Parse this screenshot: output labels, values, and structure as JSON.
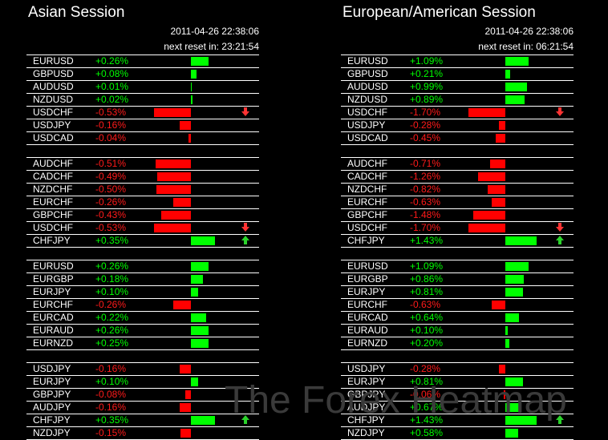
{
  "watermark": "The Forex Heatmap",
  "colors": {
    "positive": "#00ff00",
    "negative": "#ff0000",
    "background": "#000000"
  },
  "panels": [
    {
      "title": "Asian Session",
      "timestamp": "2011-04-26 22:38:06",
      "reset": "next reset in: 23:21:54",
      "groups": [
        [
          {
            "symbol": "EURUSD",
            "change": "+0.26%",
            "value": 0.26,
            "arrow": ""
          },
          {
            "symbol": "GBPUSD",
            "change": "+0.08%",
            "value": 0.08,
            "arrow": ""
          },
          {
            "symbol": "AUDUSD",
            "change": "+0.01%",
            "value": 0.01,
            "arrow": ""
          },
          {
            "symbol": "NZDUSD",
            "change": "+0.02%",
            "value": 0.02,
            "arrow": ""
          },
          {
            "symbol": "USDCHF",
            "change": "-0.53%",
            "value": -0.53,
            "arrow": "down"
          },
          {
            "symbol": "USDJPY",
            "change": "-0.16%",
            "value": -0.16,
            "arrow": ""
          },
          {
            "symbol": "USDCAD",
            "change": "-0.04%",
            "value": -0.04,
            "arrow": ""
          }
        ],
        [
          {
            "symbol": "AUDCHF",
            "change": "-0.51%",
            "value": -0.51,
            "arrow": ""
          },
          {
            "symbol": "CADCHF",
            "change": "-0.49%",
            "value": -0.49,
            "arrow": ""
          },
          {
            "symbol": "NZDCHF",
            "change": "-0.50%",
            "value": -0.5,
            "arrow": ""
          },
          {
            "symbol": "EURCHF",
            "change": "-0.26%",
            "value": -0.26,
            "arrow": ""
          },
          {
            "symbol": "GBPCHF",
            "change": "-0.43%",
            "value": -0.43,
            "arrow": ""
          },
          {
            "symbol": "USDCHF",
            "change": "-0.53%",
            "value": -0.53,
            "arrow": "down"
          },
          {
            "symbol": "CHFJPY",
            "change": "+0.35%",
            "value": 0.35,
            "arrow": "up"
          }
        ],
        [
          {
            "symbol": "EURUSD",
            "change": "+0.26%",
            "value": 0.26,
            "arrow": ""
          },
          {
            "symbol": "EURGBP",
            "change": "+0.18%",
            "value": 0.18,
            "arrow": ""
          },
          {
            "symbol": "EURJPY",
            "change": "+0.10%",
            "value": 0.1,
            "arrow": ""
          },
          {
            "symbol": "EURCHF",
            "change": "-0.26%",
            "value": -0.26,
            "arrow": ""
          },
          {
            "symbol": "EURCAD",
            "change": "+0.22%",
            "value": 0.22,
            "arrow": ""
          },
          {
            "symbol": "EURAUD",
            "change": "+0.26%",
            "value": 0.26,
            "arrow": ""
          },
          {
            "symbol": "EURNZD",
            "change": "+0.25%",
            "value": 0.25,
            "arrow": ""
          }
        ],
        [
          {
            "symbol": "USDJPY",
            "change": "-0.16%",
            "value": -0.16,
            "arrow": ""
          },
          {
            "symbol": "EURJPY",
            "change": "+0.10%",
            "value": 0.1,
            "arrow": ""
          },
          {
            "symbol": "GBPJPY",
            "change": "-0.08%",
            "value": -0.08,
            "arrow": ""
          },
          {
            "symbol": "AUDJPY",
            "change": "-0.16%",
            "value": -0.16,
            "arrow": ""
          },
          {
            "symbol": "CHFJPY",
            "change": "+0.35%",
            "value": 0.35,
            "arrow": "up"
          },
          {
            "symbol": "NZDJPY",
            "change": "-0.15%",
            "value": -0.15,
            "arrow": ""
          }
        ]
      ]
    },
    {
      "title": "European/American Session",
      "timestamp": "2011-04-26 22:38:06",
      "reset": "next reset in: 06:21:54",
      "groups": [
        [
          {
            "symbol": "EURUSD",
            "change": "+1.09%",
            "value": 1.09,
            "arrow": ""
          },
          {
            "symbol": "GBPUSD",
            "change": "+0.21%",
            "value": 0.21,
            "arrow": ""
          },
          {
            "symbol": "AUDUSD",
            "change": "+0.99%",
            "value": 0.99,
            "arrow": ""
          },
          {
            "symbol": "NZDUSD",
            "change": "+0.89%",
            "value": 0.89,
            "arrow": ""
          },
          {
            "symbol": "USDCHF",
            "change": "-1.70%",
            "value": -1.7,
            "arrow": "down"
          },
          {
            "symbol": "USDJPY",
            "change": "-0.28%",
            "value": -0.28,
            "arrow": ""
          },
          {
            "symbol": "USDCAD",
            "change": "-0.45%",
            "value": -0.45,
            "arrow": ""
          }
        ],
        [
          {
            "symbol": "AUDCHF",
            "change": "-0.71%",
            "value": -0.71,
            "arrow": ""
          },
          {
            "symbol": "CADCHF",
            "change": "-1.26%",
            "value": -1.26,
            "arrow": ""
          },
          {
            "symbol": "NZDCHF",
            "change": "-0.82%",
            "value": -0.82,
            "arrow": ""
          },
          {
            "symbol": "EURCHF",
            "change": "-0.63%",
            "value": -0.63,
            "arrow": ""
          },
          {
            "symbol": "GBPCHF",
            "change": "-1.48%",
            "value": -1.48,
            "arrow": ""
          },
          {
            "symbol": "USDCHF",
            "change": "-1.70%",
            "value": -1.7,
            "arrow": "down"
          },
          {
            "symbol": "CHFJPY",
            "change": "+1.43%",
            "value": 1.43,
            "arrow": "up"
          }
        ],
        [
          {
            "symbol": "EURUSD",
            "change": "+1.09%",
            "value": 1.09,
            "arrow": ""
          },
          {
            "symbol": "EURGBP",
            "change": "+0.86%",
            "value": 0.86,
            "arrow": ""
          },
          {
            "symbol": "EURJPY",
            "change": "+0.81%",
            "value": 0.81,
            "arrow": ""
          },
          {
            "symbol": "EURCHF",
            "change": "-0.63%",
            "value": -0.63,
            "arrow": ""
          },
          {
            "symbol": "EURCAD",
            "change": "+0.64%",
            "value": 0.64,
            "arrow": ""
          },
          {
            "symbol": "EURAUD",
            "change": "+0.10%",
            "value": 0.1,
            "arrow": ""
          },
          {
            "symbol": "EURNZD",
            "change": "+0.20%",
            "value": 0.2,
            "arrow": ""
          }
        ],
        [
          {
            "symbol": "USDJPY",
            "change": "-0.28%",
            "value": -0.28,
            "arrow": ""
          },
          {
            "symbol": "EURJPY",
            "change": "+0.81%",
            "value": 0.81,
            "arrow": ""
          },
          {
            "symbol": "GBPJPY",
            "change": "-0.06%",
            "value": -0.06,
            "arrow": ""
          },
          {
            "symbol": "AUDJPY",
            "change": "+0.67%",
            "value": 0.67,
            "arrow": ""
          },
          {
            "symbol": "CHFJPY",
            "change": "+1.43%",
            "value": 1.43,
            "arrow": "up"
          },
          {
            "symbol": "NZDJPY",
            "change": "+0.58%",
            "value": 0.58,
            "arrow": ""
          }
        ]
      ]
    }
  ]
}
